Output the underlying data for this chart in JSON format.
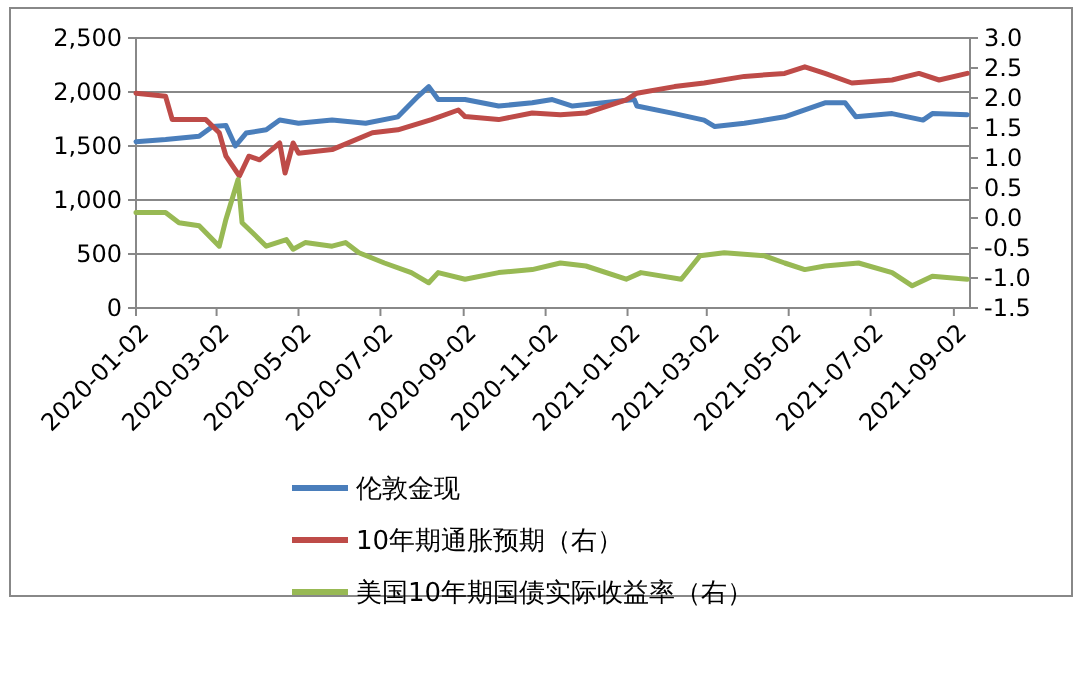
{
  "chart_data": {
    "type": "line",
    "xlim": [
      "2020-01-02",
      "2021-09-14"
    ],
    "xticks": [
      {
        "value": "2020-01-02",
        "label": "2020-01-02"
      },
      {
        "value": "2020-03-02",
        "label": "2020-03-02"
      },
      {
        "value": "2020-05-02",
        "label": "2020-05-02"
      },
      {
        "value": "2020-07-02",
        "label": "2020-07-02"
      },
      {
        "value": "2020-09-02",
        "label": "2020-09-02"
      },
      {
        "value": "2020-11-02",
        "label": "2020-11-02"
      },
      {
        "value": "2021-01-02",
        "label": "2021-01-02"
      },
      {
        "value": "2021-03-02",
        "label": "2021-03-02"
      },
      {
        "value": "2021-05-02",
        "label": "2021-05-02"
      },
      {
        "value": "2021-07-02",
        "label": "2021-07-02"
      },
      {
        "value": "2021-09-02",
        "label": "2021-09-02"
      }
    ],
    "ylim": [
      0,
      2500
    ],
    "yticks": [
      0,
      {
        "value": 500,
        "label": "500"
      },
      {
        "value": 1000,
        "label": "1,000"
      },
      {
        "value": 1500,
        "label": "1,500"
      },
      {
        "value": 2000,
        "label": "2,000"
      },
      {
        "value": 2500,
        "label": "2,500"
      }
    ],
    "y2lim": [
      -1.5,
      3.0
    ],
    "y2ticks": [
      {
        "value": -1.5,
        "label": "-1.5"
      },
      {
        "value": -1.0,
        "label": "-1.0"
      },
      {
        "value": -0.5,
        "label": "-0.5"
      },
      {
        "value": 0,
        "label": "0.0"
      },
      {
        "value": 0.5,
        "label": "0.5"
      },
      {
        "value": 1.0,
        "label": "1.0"
      },
      {
        "value": 1.5,
        "label": "1.5"
      },
      {
        "value": 2.0,
        "label": "2.0"
      },
      {
        "value": 2.5,
        "label": "2.5"
      },
      {
        "value": 3.0,
        "label": "3.0"
      }
    ],
    "grid": "y",
    "legend": "bottom",
    "marker": "none",
    "line_style": "solid",
    "series": [
      {
        "name": "伦敦金现",
        "color": "#4a7ebb",
        "x": [
          "2020-01-02",
          "2020-01-24",
          "2020-02-18",
          "2020-02-28",
          "2020-03-09",
          "2020-03-16",
          "2020-03-24",
          "2020-04-08",
          "2020-04-18",
          "2020-05-02",
          "2020-05-27",
          "2020-06-21",
          "2020-07-15",
          "2020-07-30",
          "2020-08-07",
          "2020-08-14",
          "2020-09-03",
          "2020-09-28",
          "2020-10-23",
          "2020-11-07",
          "2020-11-22",
          "2021-01-07",
          "2021-01-09",
          "2021-02-06",
          "2021-02-28",
          "2021-03-08",
          "2021-03-30",
          "2021-04-29",
          "2021-05-29",
          "2021-06-13",
          "2021-06-21",
          "2021-07-18",
          "2021-08-10",
          "2021-08-17",
          "2021-09-12"
        ],
        "values": [
          1540,
          1560,
          1590,
          1680,
          1690,
          1500,
          1620,
          1650,
          1740,
          1710,
          1740,
          1710,
          1770,
          1960,
          2050,
          1930,
          1930,
          1870,
          1900,
          1930,
          1870,
          1930,
          1870,
          1800,
          1740,
          1680,
          1710,
          1770,
          1900,
          1900,
          1770,
          1800,
          1740,
          1800,
          1790
        ]
      },
      {
        "name": "10年期通胀预期（右）",
        "color": "#be4b48",
        "axis": "y2",
        "x": [
          "2020-01-02",
          "2020-01-24",
          "2020-01-29",
          "2020-02-23",
          "2020-03-04",
          "2020-03-09",
          "2020-03-19",
          "2020-03-26",
          "2020-04-03",
          "2020-04-18",
          "2020-04-22",
          "2020-04-28",
          "2020-05-02",
          "2020-05-27",
          "2020-06-26",
          "2020-07-15",
          "2020-08-09",
          "2020-08-29",
          "2020-09-03",
          "2020-09-28",
          "2020-10-23",
          "2020-11-13",
          "2020-12-02",
          "2021-01-01",
          "2021-01-09",
          "2021-02-06",
          "2021-02-28",
          "2021-03-30",
          "2021-04-29",
          "2021-05-14",
          "2021-05-29",
          "2021-06-18",
          "2021-07-18",
          "2021-08-07",
          "2021-08-22",
          "2021-09-12"
        ],
        "values": [
          2.08,
          2.03,
          1.64,
          1.64,
          1.42,
          1.03,
          0.7,
          1.03,
          0.97,
          1.25,
          0.75,
          1.25,
          1.08,
          1.14,
          1.42,
          1.47,
          1.64,
          1.8,
          1.69,
          1.64,
          1.75,
          1.72,
          1.75,
          1.97,
          2.08,
          2.19,
          2.25,
          2.36,
          2.41,
          2.52,
          2.41,
          2.25,
          2.3,
          2.41,
          2.3,
          2.41
        ]
      },
      {
        "name": "美国10年期国债实际收益率（右）",
        "color": "#98b954",
        "axis": "y2",
        "x": [
          "2020-01-02",
          "2020-01-24",
          "2020-02-03",
          "2020-02-18",
          "2020-03-04",
          "2020-03-09",
          "2020-03-18",
          "2020-03-21",
          "2020-03-29",
          "2020-04-08",
          "2020-04-23",
          "2020-04-28",
          "2020-05-07",
          "2020-05-27",
          "2020-06-06",
          "2020-06-16",
          "2020-07-05",
          "2020-07-25",
          "2020-08-07",
          "2020-08-14",
          "2020-09-03",
          "2020-09-28",
          "2020-10-23",
          "2020-11-13",
          "2020-12-02",
          "2021-01-01",
          "2021-01-12",
          "2021-02-11",
          "2021-02-25",
          "2021-03-15",
          "2021-04-14",
          "2021-04-29",
          "2021-05-14",
          "2021-05-29",
          "2021-06-23",
          "2021-07-18",
          "2021-08-02",
          "2021-08-17",
          "2021-09-12"
        ],
        "values": [
          0.09,
          0.09,
          -0.08,
          -0.13,
          -0.47,
          -0.02,
          0.64,
          -0.08,
          -0.25,
          -0.47,
          -0.36,
          -0.52,
          -0.41,
          -0.47,
          -0.41,
          -0.58,
          -0.75,
          -0.91,
          -1.08,
          -0.91,
          -1.02,
          -0.91,
          -0.86,
          -0.75,
          -0.8,
          -1.02,
          -0.91,
          -1.02,
          -0.63,
          -0.58,
          -0.63,
          -0.75,
          -0.86,
          -0.8,
          -0.75,
          -0.91,
          -1.13,
          -0.97,
          -1.02
        ]
      }
    ]
  }
}
